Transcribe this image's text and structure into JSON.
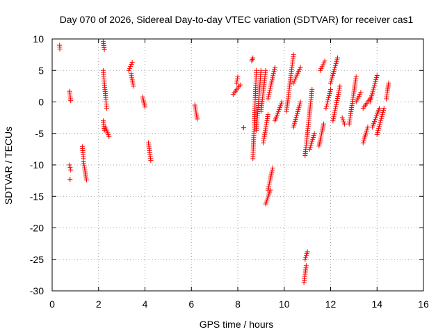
{
  "chart_data": {
    "type": "scatter",
    "title": "Day 070 of 2026, Sidereal Day-to-day VTEC variation (SDTVAR) for receiver cas1",
    "xlabel": "GPS time / hours",
    "ylabel": "SDTVAR / TECUs",
    "xlim": [
      0,
      16
    ],
    "ylim": [
      -30,
      10
    ],
    "xticks": [
      0,
      2,
      4,
      6,
      8,
      10,
      12,
      14,
      16
    ],
    "yticks": [
      10,
      5,
      0,
      -5,
      -10,
      -15,
      -20,
      -25,
      -30
    ],
    "grid": true,
    "marker": "+",
    "series": [
      {
        "name": "SDTVAR",
        "color": "#ff0000",
        "segments": [
          {
            "t": [
              0.32,
              0.33
            ],
            "v": [
              9.0,
              8.4
            ]
          },
          {
            "t": [
              0.75,
              0.8
            ],
            "v": [
              1.7,
              0.2
            ]
          },
          {
            "t": [
              0.75,
              0.8
            ],
            "v": [
              -10.0,
              -10.8
            ]
          },
          {
            "t": [
              0.77,
              0.77
            ],
            "v": [
              -12.3,
              -12.3
            ]
          },
          {
            "t": [
              1.3,
              1.35
            ],
            "v": [
              -7.1,
              -9.0
            ]
          },
          {
            "t": [
              1.35,
              1.48
            ],
            "v": [
              -9.5,
              -12.4
            ]
          },
          {
            "t": [
              2.2,
              2.25
            ],
            "v": [
              9.6,
              8.3
            ]
          },
          {
            "t": [
              2.2,
              2.35
            ],
            "v": [
              5.0,
              -1.0
            ]
          },
          {
            "t": [
              2.2,
              2.25
            ],
            "v": [
              -3.0,
              -4.5
            ]
          },
          {
            "t": [
              2.3,
              2.45
            ],
            "v": [
              -4.0,
              -5.5
            ]
          },
          {
            "t": [
              3.3,
              3.45
            ],
            "v": [
              5.0,
              6.3
            ]
          },
          {
            "t": [
              3.4,
              3.5
            ],
            "v": [
              4.5,
              2.5
            ]
          },
          {
            "t": [
              3.9,
              4.0
            ],
            "v": [
              0.8,
              -0.8
            ]
          },
          {
            "t": [
              4.15,
              4.25
            ],
            "v": [
              -6.5,
              -9.3
            ]
          },
          {
            "t": [
              6.15,
              6.25
            ],
            "v": [
              -0.5,
              -2.7
            ]
          },
          {
            "t": [
              7.8,
              8.1
            ],
            "v": [
              1.2,
              2.7
            ]
          },
          {
            "t": [
              7.95,
              8.0
            ],
            "v": [
              3.0,
              4.0
            ]
          },
          {
            "t": [
              8.25,
              8.25
            ],
            "v": [
              -4.1,
              -4.1
            ]
          },
          {
            "t": [
              8.6,
              8.65
            ],
            "v": [
              6.5,
              7.0
            ]
          },
          {
            "t": [
              8.65,
              8.8
            ],
            "v": [
              -9.0,
              5.0
            ]
          },
          {
            "t": [
              8.8,
              9.0
            ],
            "v": [
              -4.5,
              5.0
            ]
          },
          {
            "t": [
              9.0,
              9.2
            ],
            "v": [
              -1.5,
              5.0
            ]
          },
          {
            "t": [
              9.1,
              9.3
            ],
            "v": [
              -6.5,
              -2.0
            ]
          },
          {
            "t": [
              9.2,
              9.4
            ],
            "v": [
              -16.2,
              -14.0
            ]
          },
          {
            "t": [
              9.3,
              9.5
            ],
            "v": [
              -14.0,
              -10.5
            ]
          },
          {
            "t": [
              9.3,
              9.6
            ],
            "v": [
              0.5,
              5.5
            ]
          },
          {
            "t": [
              9.6,
              9.9
            ],
            "v": [
              -3.0,
              0.0
            ]
          },
          {
            "t": [
              10.1,
              10.4
            ],
            "v": [
              -1.5,
              7.5
            ]
          },
          {
            "t": [
              10.4,
              10.7
            ],
            "v": [
              3.0,
              5.5
            ]
          },
          {
            "t": [
              10.4,
              10.7
            ],
            "v": [
              -4.0,
              0.0
            ]
          },
          {
            "t": [
              10.85,
              10.95
            ],
            "v": [
              -28.7,
              -26.0
            ]
          },
          {
            "t": [
              10.9,
              11.0
            ],
            "v": [
              -25.0,
              -23.8
            ]
          },
          {
            "t": [
              10.9,
              11.2
            ],
            "v": [
              -8.5,
              2.0
            ]
          },
          {
            "t": [
              11.1,
              11.3
            ],
            "v": [
              -7.5,
              -5.0
            ]
          },
          {
            "t": [
              11.5,
              11.7
            ],
            "v": [
              -7.0,
              -3.5
            ]
          },
          {
            "t": [
              11.55,
              11.75
            ],
            "v": [
              5.0,
              6.5
            ]
          },
          {
            "t": [
              11.8,
              12.0
            ],
            "v": [
              -1.0,
              2.0
            ]
          },
          {
            "t": [
              12.0,
              12.3
            ],
            "v": [
              3.0,
              7.0
            ]
          },
          {
            "t": [
              12.1,
              12.4
            ],
            "v": [
              -3.0,
              2.5
            ]
          },
          {
            "t": [
              12.5,
              12.6
            ],
            "v": [
              -2.5,
              -3.5
            ]
          },
          {
            "t": [
              12.8,
              13.1
            ],
            "v": [
              -3.5,
              4.0
            ]
          },
          {
            "t": [
              13.1,
              13.3
            ],
            "v": [
              0.0,
              1.5
            ]
          },
          {
            "t": [
              13.4,
              13.6
            ],
            "v": [
              -6.5,
              -4.0
            ]
          },
          {
            "t": [
              13.4,
              13.7
            ],
            "v": [
              -1.0,
              0.5
            ]
          },
          {
            "t": [
              13.7,
              14.0
            ],
            "v": [
              0.0,
              4.2
            ]
          },
          {
            "t": [
              13.8,
              14.1
            ],
            "v": [
              -4.0,
              -1.0
            ]
          },
          {
            "t": [
              14.0,
              14.3
            ],
            "v": [
              -5.2,
              -1.0
            ]
          },
          {
            "t": [
              14.4,
              14.5
            ],
            "v": [
              0.5,
              3.0
            ]
          }
        ]
      }
    ]
  }
}
